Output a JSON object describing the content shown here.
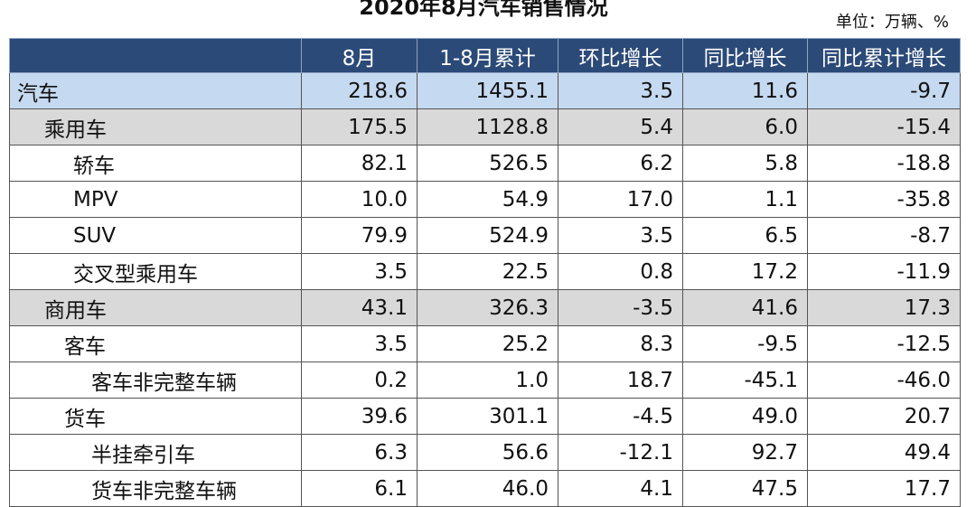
{
  "header": {
    "title": "2020年8月汽车销售情况",
    "unit": "单位：万辆、%"
  },
  "table": {
    "columns": [
      "",
      "8月",
      "1-8月累计",
      "环比增长",
      "同比增长",
      "同比累计增长"
    ],
    "rows": [
      [
        "汽车",
        "218.6",
        "1455.1",
        "3.5",
        "11.6",
        "-9.7"
      ],
      [
        "乘用车",
        "175.5",
        "1128.8",
        "5.4",
        "6.0",
        "-15.4"
      ],
      [
        "轿车",
        "82.1",
        "526.5",
        "6.2",
        "5.8",
        "-18.8"
      ],
      [
        "MPV",
        "10.0",
        "54.9",
        "17.0",
        "1.1",
        "-35.8"
      ],
      [
        "SUV",
        "79.9",
        "524.9",
        "3.5",
        "6.5",
        "-8.7"
      ],
      [
        "交叉型乘用车",
        "3.5",
        "22.5",
        "0.8",
        "17.2",
        "-11.9"
      ],
      [
        "商用车",
        "43.1",
        "326.3",
        "-3.5",
        "41.6",
        "17.3"
      ],
      [
        "客车",
        "3.5",
        "25.2",
        "8.3",
        "-9.5",
        "-12.5"
      ],
      [
        "客车非完整车辆",
        "0.2",
        "1.0",
        "18.7",
        "-45.1",
        "-46.0"
      ],
      [
        "货车",
        "39.6",
        "301.1",
        "-4.5",
        "49.0",
        "20.7"
      ],
      [
        "半挂牵引车",
        "6.3",
        "56.6",
        "-12.1",
        "92.7",
        "49.4"
      ],
      [
        "货车非完整车辆",
        "6.1",
        "46.0",
        "4.1",
        "47.5",
        "17.7"
      ]
    ]
  }
}
